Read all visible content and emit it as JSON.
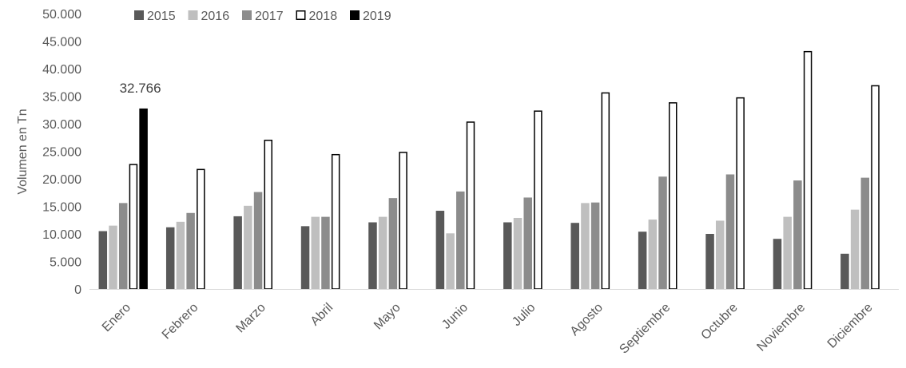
{
  "chart_data": {
    "type": "bar",
    "title": "",
    "ylabel": "Volumen en Tn",
    "xlabel": "",
    "ylim": [
      0,
      50000
    ],
    "ytick_step": 5000,
    "ytick_labels": [
      "0",
      "5.000",
      "10.000",
      "15.000",
      "20.000",
      "25.000",
      "30.000",
      "35.000",
      "40.000",
      "45.000",
      "50.000"
    ],
    "grid": false,
    "legend_position": "top",
    "categories": [
      "Enero",
      "Febrero",
      "Marzo",
      "Abril",
      "Mayo",
      "Junio",
      "Julio",
      "Agosto",
      "Septiembre",
      "Octubre",
      "Noviembre",
      "Diciembre"
    ],
    "series": [
      {
        "name": "2015",
        "color": "#595959",
        "fill": "solid",
        "values": [
          10500,
          11200,
          13200,
          11400,
          12100,
          14200,
          12100,
          12000,
          10400,
          10000,
          9100,
          6400
        ]
      },
      {
        "name": "2016",
        "color": "#bfbfbf",
        "fill": "solid",
        "values": [
          11500,
          12200,
          15100,
          13100,
          13100,
          10100,
          12900,
          15600,
          12600,
          12400,
          13100,
          14400
        ]
      },
      {
        "name": "2017",
        "color": "#8c8c8c",
        "fill": "solid",
        "values": [
          15600,
          13800,
          17600,
          13100,
          16500,
          17700,
          16600,
          15700,
          20400,
          20800,
          19700,
          20200
        ]
      },
      {
        "name": "2018",
        "color": "#000000",
        "fill": "outline",
        "values": [
          22700,
          21800,
          27100,
          24500,
          24900,
          30400,
          32400,
          35700,
          33900,
          34800,
          43200,
          37000
        ]
      },
      {
        "name": "2019",
        "color": "#000000",
        "fill": "solid",
        "values": [
          32766,
          null,
          null,
          null,
          null,
          null,
          null,
          null,
          null,
          null,
          null,
          null
        ]
      }
    ],
    "annotations": [
      {
        "category": "Enero",
        "series": "2019",
        "text": "32.766"
      }
    ]
  }
}
